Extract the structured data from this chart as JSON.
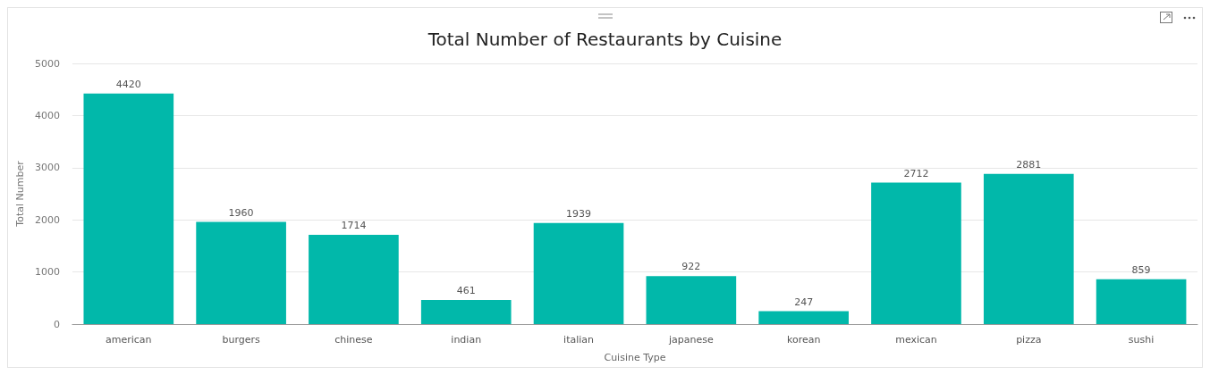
{
  "chart_data": {
    "type": "bar",
    "title": "Total Number of Restaurants by Cuisine",
    "xlabel": "Cuisine Type",
    "ylabel": "Total Number",
    "categories": [
      "american",
      "burgers",
      "chinese",
      "indian",
      "italian",
      "japanese",
      "korean",
      "mexican",
      "pizza",
      "sushi"
    ],
    "values": [
      4420,
      1960,
      1714,
      461,
      1939,
      922,
      247,
      2712,
      2881,
      859
    ],
    "color": "#01b8aa",
    "ylim": [
      0,
      5000
    ],
    "yticks": [
      0,
      1000,
      2000,
      3000,
      4000,
      5000
    ],
    "grid": "y",
    "data_labels": true
  }
}
